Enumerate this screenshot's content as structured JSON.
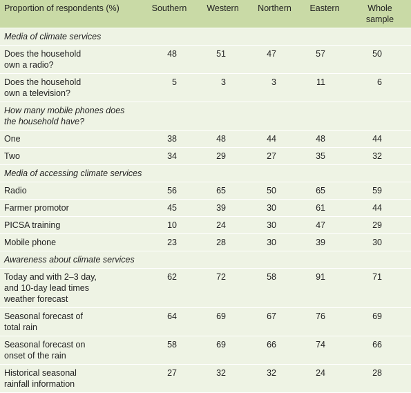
{
  "table": {
    "header": [
      "Proportion of respondents (%)",
      "Southern",
      "Western",
      "Northern",
      "Eastern",
      "Whole sample"
    ],
    "rows": [
      [
        "Media of climate services"
      ],
      [
        "Does the household\nown a radio?",
        48,
        51,
        47,
        57,
        50
      ],
      [
        "Does the household\nown a television?",
        5,
        3,
        3,
        11,
        6
      ],
      [
        "How many mobile phones does\nthe household have?"
      ],
      [
        "One",
        38,
        48,
        44,
        48,
        44
      ],
      [
        "Two",
        34,
        29,
        27,
        35,
        32
      ],
      [
        "Media of accessing climate services"
      ],
      [
        "Radio",
        56,
        65,
        50,
        65,
        59
      ],
      [
        "Farmer promotor",
        45,
        39,
        30,
        61,
        44
      ],
      [
        "PICSA training",
        10,
        24,
        30,
        47,
        29
      ],
      [
        "Mobile phone",
        23,
        28,
        30,
        39,
        30
      ],
      [
        "Awareness about climate services"
      ],
      [
        "Today and with 2–3 day,\nand 10-day lead times\nweather forecast",
        62,
        72,
        58,
        91,
        71
      ],
      [
        "Seasonal forecast of\ntotal rain",
        64,
        69,
        67,
        76,
        69
      ],
      [
        "Seasonal forecast on\nonset of the rain",
        58,
        69,
        66,
        74,
        66
      ],
      [
        "Historical seasonal\nrainfall information",
        27,
        32,
        32,
        24,
        28
      ]
    ]
  }
}
